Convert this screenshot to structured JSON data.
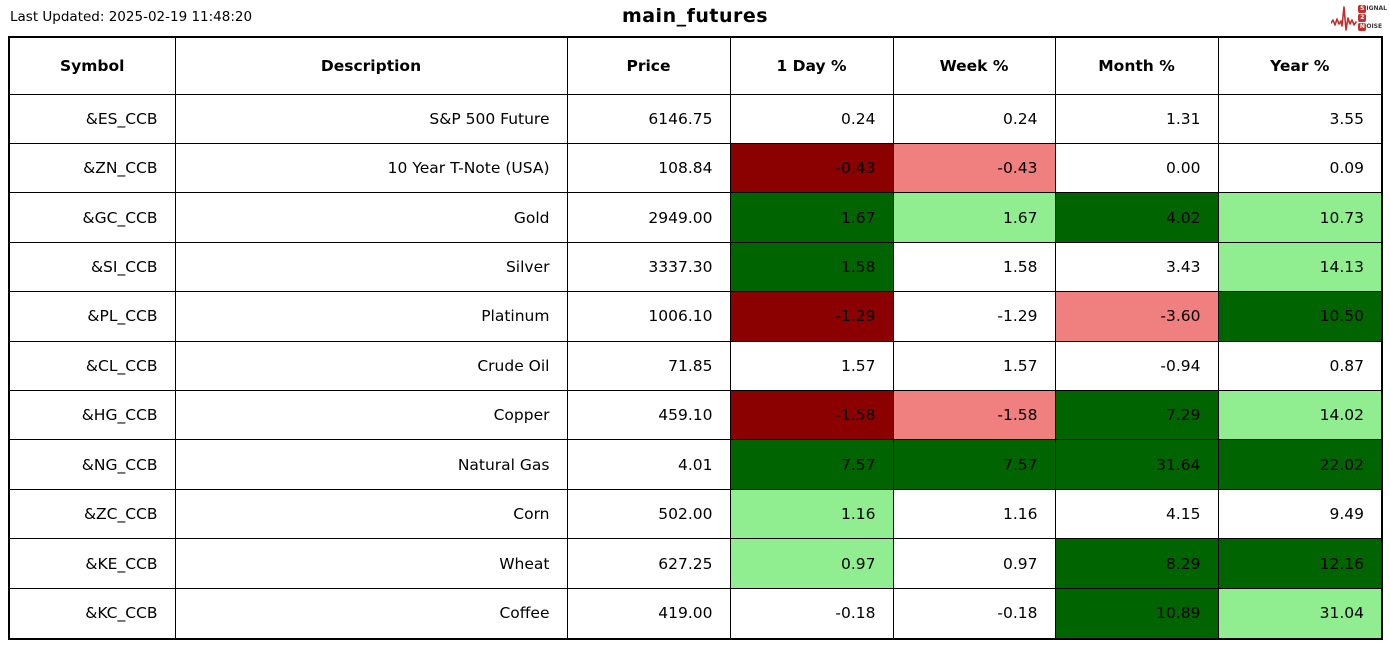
{
  "meta": {
    "last_updated": "Last Updated: 2025-02-19 11:48:20",
    "title": "main_futures"
  },
  "logo": {
    "name": "signal-2-noise",
    "color": "#C22F2F",
    "line1_initial": "S",
    "line1_rest": "IGNAL",
    "line2_initial": "2",
    "line3_initial": "N",
    "line3_rest": "OISE"
  },
  "cell_colors": {
    "neutral": "#FFFFFF",
    "strong_up": "#006400",
    "mild_up": "#90EE90",
    "strong_down": "#8B0000",
    "mild_down": "#F08080"
  },
  "chart_data": {
    "type": "table",
    "title": "main_futures",
    "columns": [
      "Symbol",
      "Description",
      "Price",
      "1 Day %",
      "Week %",
      "Month %",
      "Year %"
    ],
    "rows": [
      {
        "symbol": "&ES_CCB",
        "description": "S&P 500 Future",
        "price": "6146.75",
        "changes": [
          {
            "v": "0.24",
            "c": "neutral"
          },
          {
            "v": "0.24",
            "c": "neutral"
          },
          {
            "v": "1.31",
            "c": "neutral"
          },
          {
            "v": "3.55",
            "c": "neutral"
          }
        ]
      },
      {
        "symbol": "&ZN_CCB",
        "description": "10 Year T-Note (USA)",
        "price": "108.84",
        "changes": [
          {
            "v": "-0.43",
            "c": "strong_down"
          },
          {
            "v": "-0.43",
            "c": "mild_down"
          },
          {
            "v": "0.00",
            "c": "neutral"
          },
          {
            "v": "0.09",
            "c": "neutral"
          }
        ]
      },
      {
        "symbol": "&GC_CCB",
        "description": "Gold",
        "price": "2949.00",
        "changes": [
          {
            "v": "1.67",
            "c": "strong_up"
          },
          {
            "v": "1.67",
            "c": "mild_up"
          },
          {
            "v": "4.02",
            "c": "strong_up"
          },
          {
            "v": "10.73",
            "c": "mild_up"
          }
        ]
      },
      {
        "symbol": "&SI_CCB",
        "description": "Silver",
        "price": "3337.30",
        "changes": [
          {
            "v": "1.58",
            "c": "strong_up"
          },
          {
            "v": "1.58",
            "c": "neutral"
          },
          {
            "v": "3.43",
            "c": "neutral"
          },
          {
            "v": "14.13",
            "c": "mild_up"
          }
        ]
      },
      {
        "symbol": "&PL_CCB",
        "description": "Platinum",
        "price": "1006.10",
        "changes": [
          {
            "v": "-1.29",
            "c": "strong_down"
          },
          {
            "v": "-1.29",
            "c": "neutral"
          },
          {
            "v": "-3.60",
            "c": "mild_down"
          },
          {
            "v": "10.50",
            "c": "strong_up"
          }
        ]
      },
      {
        "symbol": "&CL_CCB",
        "description": "Crude Oil",
        "price": "71.85",
        "changes": [
          {
            "v": "1.57",
            "c": "neutral"
          },
          {
            "v": "1.57",
            "c": "neutral"
          },
          {
            "v": "-0.94",
            "c": "neutral"
          },
          {
            "v": "0.87",
            "c": "neutral"
          }
        ]
      },
      {
        "symbol": "&HG_CCB",
        "description": "Copper",
        "price": "459.10",
        "changes": [
          {
            "v": "-1.58",
            "c": "strong_down"
          },
          {
            "v": "-1.58",
            "c": "mild_down"
          },
          {
            "v": "7.29",
            "c": "strong_up"
          },
          {
            "v": "14.02",
            "c": "mild_up"
          }
        ]
      },
      {
        "symbol": "&NG_CCB",
        "description": "Natural Gas",
        "price": "4.01",
        "changes": [
          {
            "v": "7.57",
            "c": "strong_up"
          },
          {
            "v": "7.57",
            "c": "strong_up"
          },
          {
            "v": "31.64",
            "c": "strong_up"
          },
          {
            "v": "22.02",
            "c": "strong_up"
          }
        ]
      },
      {
        "symbol": "&ZC_CCB",
        "description": "Corn",
        "price": "502.00",
        "changes": [
          {
            "v": "1.16",
            "c": "mild_up"
          },
          {
            "v": "1.16",
            "c": "neutral"
          },
          {
            "v": "4.15",
            "c": "neutral"
          },
          {
            "v": "9.49",
            "c": "neutral"
          }
        ]
      },
      {
        "symbol": "&KE_CCB",
        "description": "Wheat",
        "price": "627.25",
        "changes": [
          {
            "v": "0.97",
            "c": "mild_up"
          },
          {
            "v": "0.97",
            "c": "neutral"
          },
          {
            "v": "8.29",
            "c": "strong_up"
          },
          {
            "v": "12.16",
            "c": "strong_up"
          }
        ]
      },
      {
        "symbol": "&KC_CCB",
        "description": "Coffee",
        "price": "419.00",
        "changes": [
          {
            "v": "-0.18",
            "c": "neutral"
          },
          {
            "v": "-0.18",
            "c": "neutral"
          },
          {
            "v": "10.89",
            "c": "strong_up"
          },
          {
            "v": "31.04",
            "c": "mild_up"
          }
        ]
      }
    ]
  }
}
